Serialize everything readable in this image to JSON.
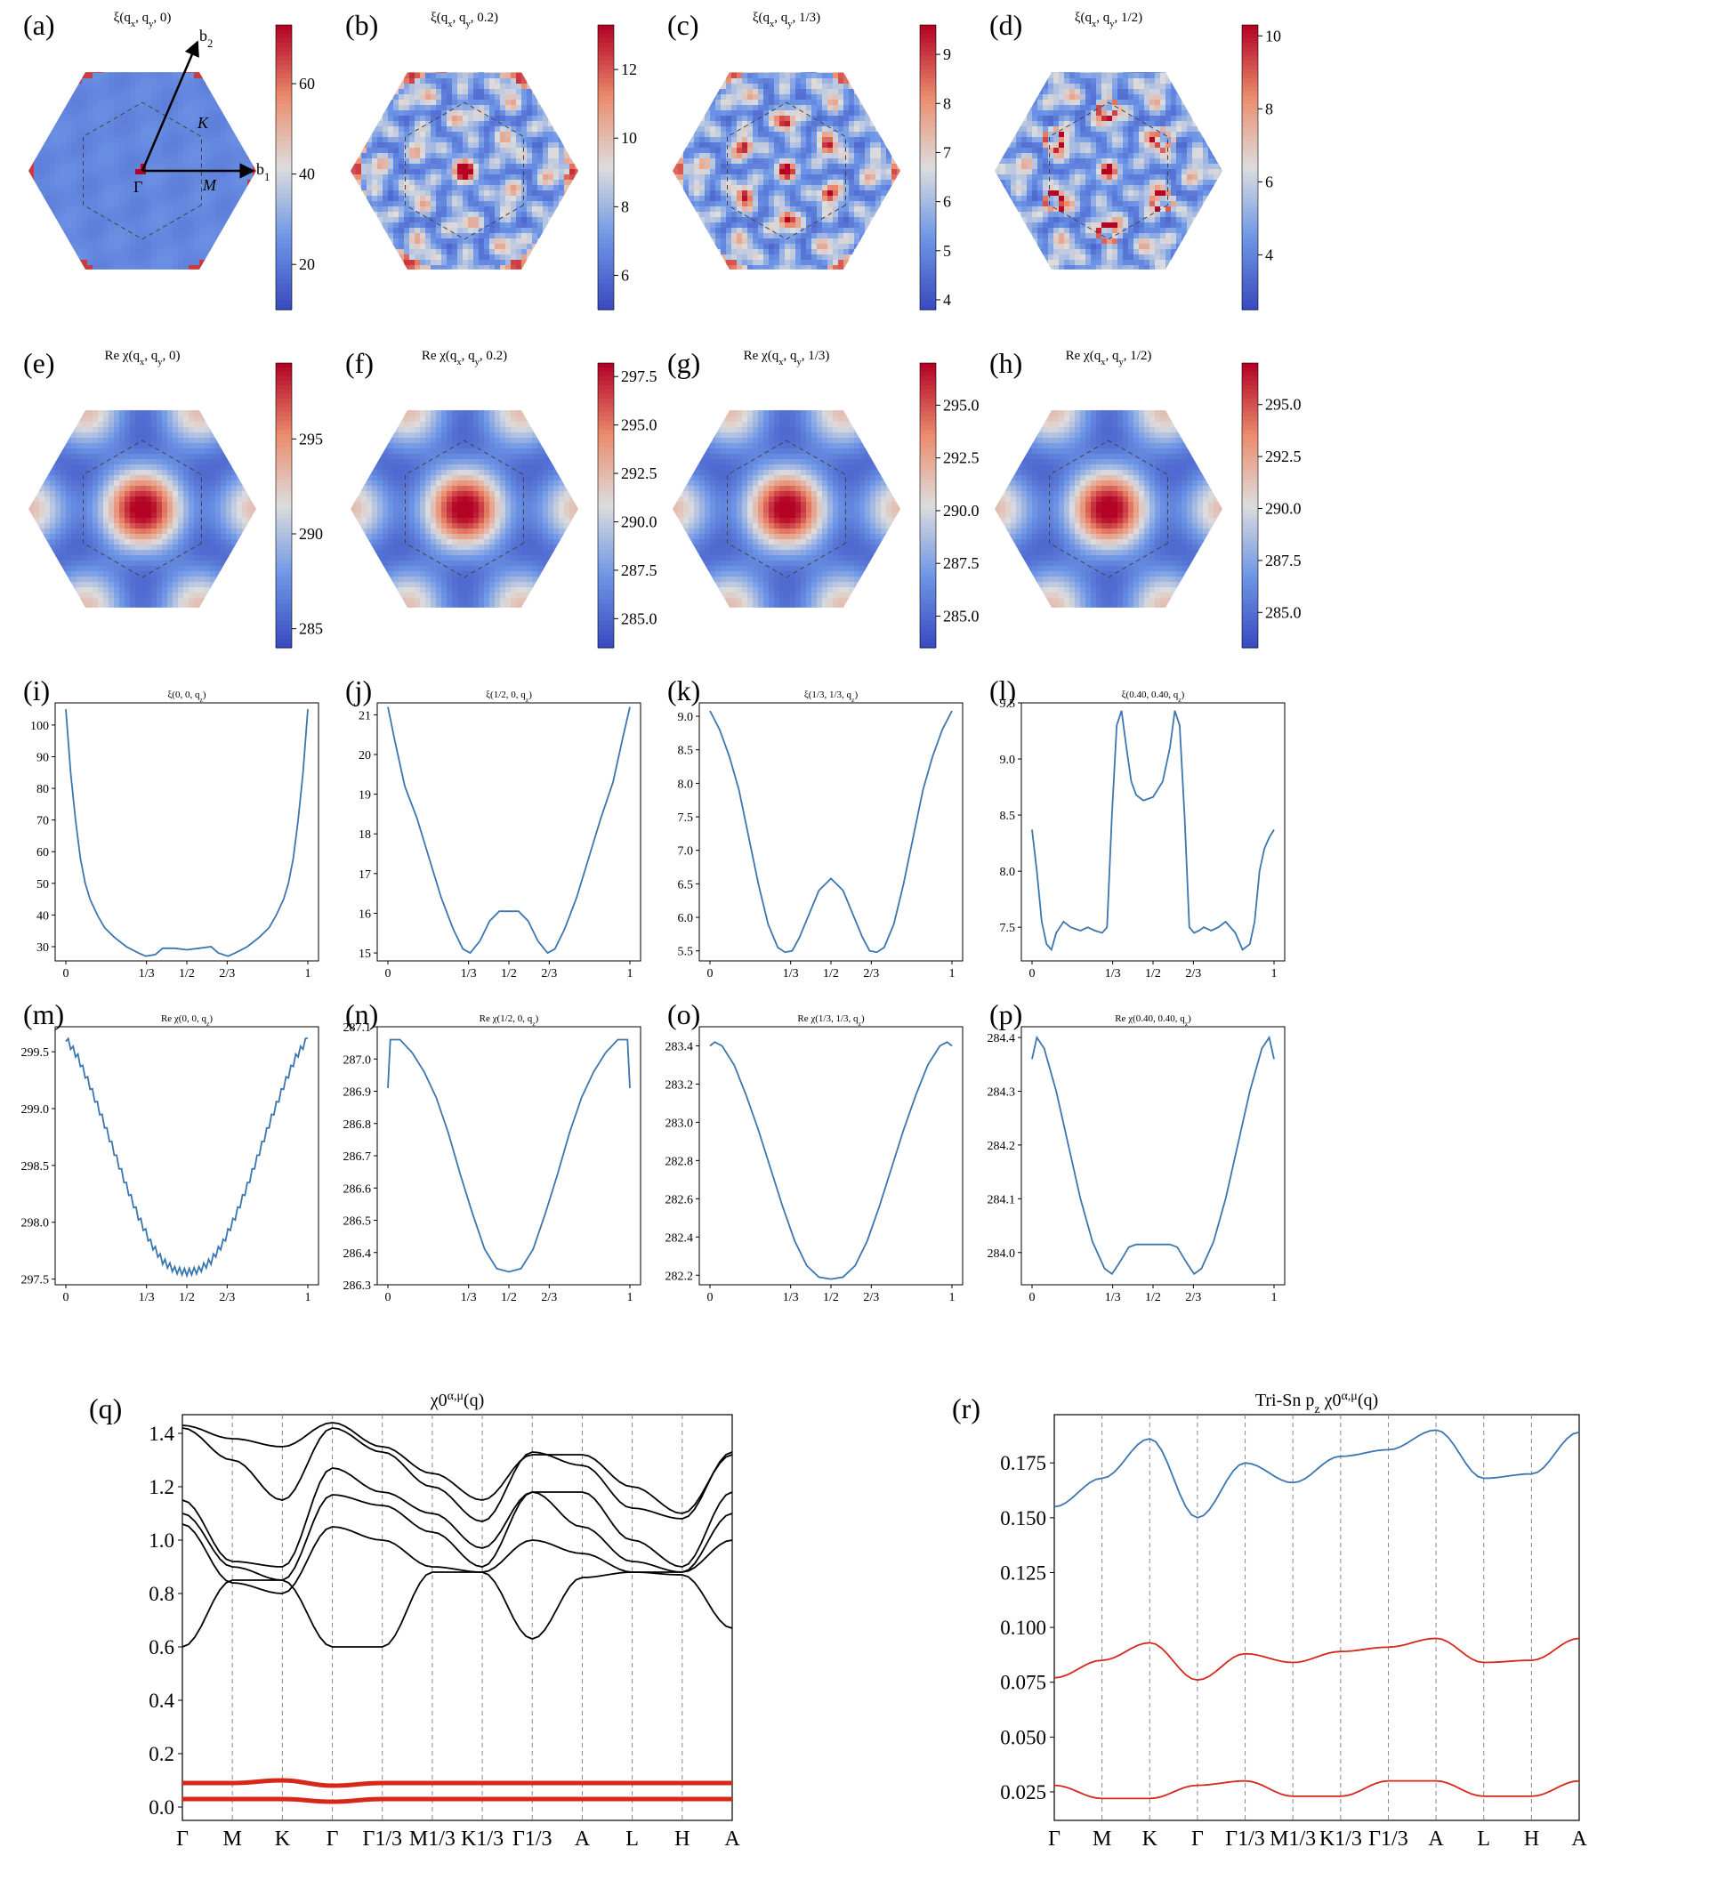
{
  "colors": {
    "line_blue": "#3b76b0",
    "band_black": "#000000",
    "band_red": "#d62718",
    "cmap_low": "#3b4cc0",
    "cmap_mid": "#dddddd",
    "cmap_high": "#b40426",
    "grid_dash": "#888888"
  },
  "heatmaps": [
    {
      "id": "a",
      "letter": "(a)",
      "title": "ξ(q_x, q_y, 0)",
      "cbar_ticks": [
        "60",
        "40",
        "20"
      ],
      "cbar_range": [
        10,
        73
      ],
      "pattern": "xi0",
      "annotations": {
        "b1": "b1",
        "b2": "b2",
        "K": "K",
        "M": "M",
        "Gamma": "Γ"
      }
    },
    {
      "id": "b",
      "letter": "(b)",
      "title": "ξ(q_x, q_y, 0.2)",
      "cbar_ticks": [
        "12",
        "10",
        "8",
        "6"
      ],
      "cbar_range": [
        5,
        13.3
      ],
      "pattern": "xi02"
    },
    {
      "id": "c",
      "letter": "(c)",
      "title": "ξ(q_x, q_y, 1/3)",
      "cbar_ticks": [
        "9",
        "8",
        "7",
        "6",
        "5",
        "4"
      ],
      "cbar_range": [
        3.8,
        9.6
      ],
      "pattern": "xi13"
    },
    {
      "id": "d",
      "letter": "(d)",
      "title": "ξ(q_x, q_y, 1/2)",
      "cbar_ticks": [
        "10",
        "8",
        "6",
        "4"
      ],
      "cbar_range": [
        2.5,
        10.3
      ],
      "pattern": "xi12"
    },
    {
      "id": "e",
      "letter": "(e)",
      "title": "Re χ(q_x, q_y, 0)",
      "cbar_ticks": [
        "295",
        "290",
        "285"
      ],
      "cbar_range": [
        284,
        299
      ],
      "pattern": "chi"
    },
    {
      "id": "f",
      "letter": "(f)",
      "title": "Re χ(q_x, q_y, 0.2)",
      "cbar_ticks": [
        "297.5",
        "295.0",
        "292.5",
        "290.0",
        "287.5",
        "285.0"
      ],
      "cbar_range": [
        283.5,
        298.2
      ],
      "pattern": "chi"
    },
    {
      "id": "g",
      "letter": "(g)",
      "title": "Re χ(q_x, q_y, 1/3)",
      "cbar_ticks": [
        "295.0",
        "292.5",
        "290.0",
        "287.5",
        "285.0"
      ],
      "cbar_range": [
        283.5,
        297
      ],
      "pattern": "chi"
    },
    {
      "id": "h",
      "letter": "(h)",
      "title": "Re χ(q_x, q_y, 1/2)",
      "cbar_ticks": [
        "295.0",
        "292.5",
        "290.0",
        "287.5",
        "285.0"
      ],
      "cbar_range": [
        283.3,
        297
      ],
      "pattern": "chi"
    }
  ],
  "chart_data": [
    {
      "id": "i",
      "letter": "(i)",
      "type": "line",
      "title": "ξ(0, 0, q_z)",
      "x_ticks": [
        "0",
        "1/3",
        "1/2",
        "2/3",
        "1"
      ],
      "y_ticks": [
        "100",
        "90",
        "80",
        "70",
        "60",
        "50",
        "40",
        "30"
      ],
      "ylim": [
        25.5,
        107
      ],
      "x": [
        0,
        0.02,
        0.04,
        0.06,
        0.08,
        0.1,
        0.13,
        0.16,
        0.2,
        0.25,
        0.3,
        0.33,
        0.37,
        0.4,
        0.45,
        0.5,
        0.55,
        0.6,
        0.63,
        0.67,
        0.7,
        0.75,
        0.8,
        0.84,
        0.87,
        0.9,
        0.92,
        0.94,
        0.96,
        0.98,
        1.0
      ],
      "y": [
        105,
        85,
        70,
        58,
        50,
        45,
        40,
        36,
        33,
        30,
        28,
        27,
        27.5,
        29.5,
        29.5,
        29,
        29.5,
        30,
        28,
        27,
        28,
        30,
        33,
        36,
        40,
        45,
        50,
        58,
        70,
        85,
        105
      ]
    },
    {
      "id": "j",
      "letter": "(j)",
      "type": "line",
      "title": "ξ(1/2, 0, q_z)",
      "x_ticks": [
        "0",
        "1/3",
        "1/2",
        "2/3",
        "1"
      ],
      "y_ticks": [
        "21",
        "20",
        "19",
        "18",
        "17",
        "16",
        "15"
      ],
      "ylim": [
        14.8,
        21.3
      ],
      "x": [
        0,
        0.03,
        0.07,
        0.12,
        0.17,
        0.22,
        0.27,
        0.31,
        0.34,
        0.38,
        0.42,
        0.46,
        0.5,
        0.54,
        0.58,
        0.62,
        0.66,
        0.69,
        0.73,
        0.78,
        0.83,
        0.88,
        0.93,
        0.97,
        1.0
      ],
      "y": [
        21.2,
        20.3,
        19.2,
        18.4,
        17.4,
        16.4,
        15.6,
        15.1,
        15.0,
        15.3,
        15.8,
        16.05,
        16.05,
        16.05,
        15.8,
        15.3,
        15.0,
        15.1,
        15.6,
        16.4,
        17.4,
        18.4,
        19.3,
        20.4,
        21.2
      ]
    },
    {
      "id": "k",
      "letter": "(k)",
      "type": "line",
      "title": "ξ(1/3, 1/3, q_z)",
      "x_ticks": [
        "0",
        "1/3",
        "1/2",
        "2/3",
        "1"
      ],
      "y_ticks": [
        "9.0",
        "8.5",
        "8.0",
        "7.5",
        "7.0",
        "6.5",
        "6.0",
        "5.5"
      ],
      "ylim": [
        5.35,
        9.2
      ],
      "x": [
        0,
        0.04,
        0.08,
        0.12,
        0.16,
        0.2,
        0.24,
        0.28,
        0.31,
        0.34,
        0.37,
        0.41,
        0.45,
        0.5,
        0.55,
        0.59,
        0.63,
        0.66,
        0.69,
        0.72,
        0.76,
        0.8,
        0.84,
        0.88,
        0.92,
        0.96,
        1.0
      ],
      "y": [
        9.08,
        8.8,
        8.4,
        7.9,
        7.2,
        6.5,
        5.9,
        5.55,
        5.48,
        5.5,
        5.7,
        6.05,
        6.4,
        6.58,
        6.4,
        6.05,
        5.7,
        5.5,
        5.48,
        5.55,
        5.9,
        6.5,
        7.2,
        7.9,
        8.4,
        8.8,
        9.08
      ]
    },
    {
      "id": "l",
      "letter": "(l)",
      "type": "line",
      "title": "ξ(0.40, 0.40, q_z)",
      "x_ticks": [
        "0",
        "1/3",
        "1/2",
        "2/3",
        "1"
      ],
      "y_ticks": [
        "9.5",
        "9.0",
        "8.5",
        "8.0",
        "7.5"
      ],
      "ylim": [
        7.2,
        9.5
      ],
      "x": [
        0,
        0.02,
        0.04,
        0.06,
        0.08,
        0.1,
        0.13,
        0.16,
        0.2,
        0.23,
        0.26,
        0.29,
        0.31,
        0.33,
        0.35,
        0.37,
        0.39,
        0.41,
        0.43,
        0.46,
        0.5,
        0.54,
        0.57,
        0.59,
        0.61,
        0.63,
        0.65,
        0.67,
        0.69,
        0.71,
        0.74,
        0.77,
        0.8,
        0.84,
        0.87,
        0.9,
        0.92,
        0.94,
        0.96,
        0.98,
        1.0
      ],
      "y": [
        8.37,
        8.0,
        7.55,
        7.35,
        7.3,
        7.45,
        7.55,
        7.5,
        7.47,
        7.5,
        7.47,
        7.45,
        7.5,
        8.5,
        9.3,
        9.43,
        9.1,
        8.8,
        8.68,
        8.63,
        8.66,
        8.8,
        9.1,
        9.43,
        9.3,
        8.5,
        7.5,
        7.45,
        7.47,
        7.5,
        7.47,
        7.5,
        7.55,
        7.45,
        7.3,
        7.35,
        7.55,
        8.0,
        8.2,
        8.3,
        8.37
      ]
    },
    {
      "id": "m",
      "letter": "(m)",
      "type": "line",
      "title": "Re χ(0, 0, q_z)",
      "x_ticks": [
        "0",
        "1/3",
        "1/2",
        "2/3",
        "1"
      ],
      "y_ticks": [
        "299.5",
        "299.0",
        "298.5",
        "298.0",
        "297.5"
      ],
      "ylim": [
        297.45,
        299.72
      ],
      "zigzag": 0.06,
      "x": [
        0,
        0.05,
        0.1,
        0.15,
        0.2,
        0.25,
        0.3,
        0.35,
        0.4,
        0.45,
        0.5,
        0.55,
        0.6,
        0.65,
        0.7,
        0.75,
        0.8,
        0.85,
        0.9,
        0.95,
        1.0
      ],
      "y": [
        299.62,
        299.45,
        299.2,
        298.92,
        298.62,
        298.32,
        298.05,
        297.82,
        297.66,
        297.58,
        297.56,
        297.58,
        297.66,
        297.82,
        298.05,
        298.32,
        298.62,
        298.92,
        299.2,
        299.45,
        299.62
      ]
    },
    {
      "id": "n",
      "letter": "(n)",
      "type": "line",
      "title": "Re χ(1/2, 0, q_z)",
      "x_ticks": [
        "0",
        "1/3",
        "1/2",
        "2/3",
        "1"
      ],
      "y_ticks": [
        "287.1",
        "287.0",
        "286.9",
        "286.8",
        "286.7",
        "286.6",
        "286.5",
        "286.4",
        "286.3"
      ],
      "ylim": [
        286.3,
        287.1
      ],
      "x": [
        0,
        0.01,
        0.05,
        0.1,
        0.15,
        0.2,
        0.25,
        0.3,
        0.35,
        0.4,
        0.45,
        0.5,
        0.55,
        0.6,
        0.65,
        0.7,
        0.75,
        0.8,
        0.85,
        0.9,
        0.95,
        0.99,
        1.0
      ],
      "y": [
        286.91,
        287.06,
        287.06,
        287.02,
        286.96,
        286.88,
        286.77,
        286.64,
        286.52,
        286.41,
        286.35,
        286.34,
        286.35,
        286.41,
        286.52,
        286.64,
        286.77,
        286.88,
        286.96,
        287.02,
        287.06,
        287.06,
        286.91
      ]
    },
    {
      "id": "o",
      "letter": "(o)",
      "type": "line",
      "title": "Re χ(1/3, 1/3, q_z)",
      "x_ticks": [
        "0",
        "1/3",
        "1/2",
        "2/3",
        "1"
      ],
      "y_ticks": [
        "283.4",
        "283.2",
        "283.0",
        "282.8",
        "282.6",
        "282.4",
        "282.2"
      ],
      "ylim": [
        282.15,
        283.5
      ],
      "x": [
        0,
        0.02,
        0.05,
        0.1,
        0.15,
        0.2,
        0.25,
        0.3,
        0.35,
        0.4,
        0.45,
        0.5,
        0.55,
        0.6,
        0.65,
        0.7,
        0.75,
        0.8,
        0.85,
        0.9,
        0.95,
        0.98,
        1.0
      ],
      "y": [
        283.4,
        283.42,
        283.4,
        283.3,
        283.14,
        282.96,
        282.76,
        282.56,
        282.38,
        282.25,
        282.19,
        282.18,
        282.19,
        282.25,
        282.38,
        282.56,
        282.76,
        282.96,
        283.14,
        283.3,
        283.4,
        283.42,
        283.4
      ]
    },
    {
      "id": "p",
      "letter": "(p)",
      "type": "line",
      "title": "Re χ(0.40, 0.40, q_z)",
      "x_ticks": [
        "0",
        "1/3",
        "1/2",
        "2/3",
        "1"
      ],
      "y_ticks": [
        "284.4",
        "284.3",
        "284.2",
        "284.1",
        "284.0"
      ],
      "ylim": [
        283.94,
        284.42
      ],
      "x": [
        0,
        0.02,
        0.05,
        0.1,
        0.15,
        0.2,
        0.25,
        0.3,
        0.33,
        0.36,
        0.4,
        0.43,
        0.47,
        0.5,
        0.53,
        0.57,
        0.6,
        0.64,
        0.67,
        0.7,
        0.75,
        0.8,
        0.85,
        0.9,
        0.95,
        0.98,
        1.0
      ],
      "y": [
        284.36,
        284.4,
        284.38,
        284.3,
        284.2,
        284.1,
        284.02,
        283.97,
        283.96,
        283.98,
        284.01,
        284.015,
        284.015,
        284.015,
        284.015,
        284.015,
        284.01,
        283.98,
        283.96,
        283.97,
        284.02,
        284.1,
        284.2,
        284.3,
        284.38,
        284.4,
        284.36
      ]
    },
    {
      "id": "q",
      "letter": "(q)",
      "type": "line",
      "title": "χ0^{α,μ}(q)",
      "k_labels": [
        "Γ",
        "M",
        "K",
        "Γ",
        "Γ1/3",
        "M1/3",
        "K1/3",
        "Γ1/3",
        "A",
        "L",
        "H",
        "A"
      ],
      "y_ticks": [
        "1.4",
        "1.2",
        "1.0",
        "0.8",
        "0.6",
        "0.4",
        "0.2",
        "0.0"
      ],
      "ylim": [
        -0.05,
        1.47
      ],
      "series": [
        {
          "color": "black",
          "y": [
            1.43,
            1.38,
            1.35,
            1.44,
            1.35,
            1.25,
            1.15,
            1.32,
            1.32,
            1.2,
            1.1,
            1.32
          ]
        },
        {
          "color": "black",
          "y": [
            1.42,
            1.3,
            1.15,
            1.42,
            1.33,
            1.2,
            1.07,
            1.33,
            1.28,
            1.12,
            1.08,
            1.33
          ]
        },
        {
          "color": "black",
          "y": [
            1.15,
            0.92,
            0.9,
            1.27,
            1.18,
            1.1,
            0.97,
            1.18,
            1.18,
            1.0,
            0.9,
            1.18
          ]
        },
        {
          "color": "black",
          "y": [
            1.1,
            0.9,
            0.85,
            1.17,
            1.13,
            1.03,
            0.9,
            1.18,
            1.05,
            0.92,
            0.88,
            1.1
          ]
        },
        {
          "color": "black",
          "y": [
            1.06,
            0.84,
            0.8,
            1.05,
            1.0,
            0.9,
            0.88,
            1.0,
            0.95,
            0.88,
            0.88,
            1.0
          ]
        },
        {
          "color": "black",
          "y": [
            0.6,
            0.85,
            0.85,
            0.6,
            0.6,
            0.88,
            0.88,
            0.63,
            0.86,
            0.88,
            0.87,
            0.67
          ]
        },
        {
          "color": "red",
          "y": [
            0.09,
            0.09,
            0.1,
            0.08,
            0.09,
            0.09,
            0.09,
            0.09,
            0.09,
            0.09,
            0.09,
            0.09
          ]
        },
        {
          "color": "red",
          "y": [
            0.03,
            0.03,
            0.03,
            0.02,
            0.03,
            0.03,
            0.03,
            0.03,
            0.03,
            0.03,
            0.03,
            0.03
          ]
        }
      ]
    },
    {
      "id": "r",
      "letter": "(r)",
      "type": "line",
      "title": "Tri-Sn p_z χ0^{α,μ}(q)",
      "k_labels": [
        "Γ",
        "M",
        "K",
        "Γ",
        "Γ1/3",
        "M1/3",
        "K1/3",
        "Γ1/3",
        "A",
        "L",
        "H",
        "A"
      ],
      "y_ticks": [
        "0.175",
        "0.150",
        "0.125",
        "0.100",
        "0.075",
        "0.050",
        "0.025"
      ],
      "ylim": [
        0.012,
        0.197
      ],
      "series": [
        {
          "color": "blue",
          "y": [
            0.155,
            0.168,
            0.186,
            0.15,
            0.175,
            0.166,
            0.178,
            0.181,
            0.19,
            0.168,
            0.17,
            0.189
          ]
        },
        {
          "color": "red",
          "y": [
            0.077,
            0.085,
            0.093,
            0.076,
            0.088,
            0.084,
            0.089,
            0.091,
            0.095,
            0.084,
            0.085,
            0.095
          ]
        },
        {
          "color": "red",
          "y": [
            0.028,
            0.022,
            0.022,
            0.028,
            0.03,
            0.023,
            0.023,
            0.03,
            0.03,
            0.023,
            0.023,
            0.03
          ]
        }
      ]
    }
  ]
}
